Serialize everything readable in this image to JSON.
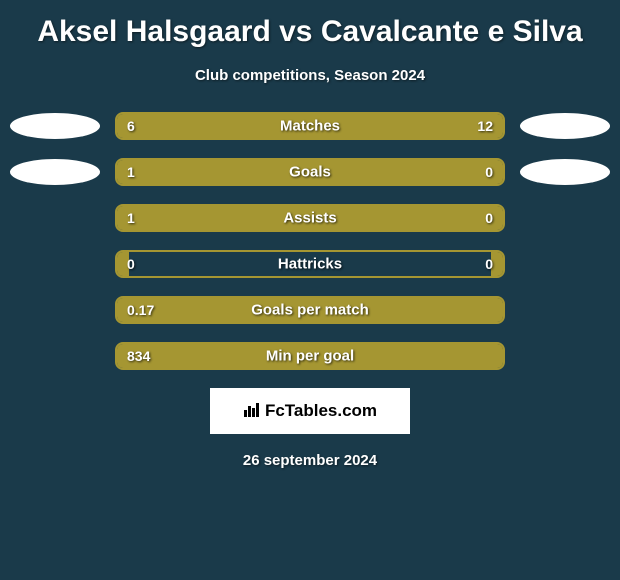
{
  "title": "Aksel Halsgaard vs Cavalcante e Silva",
  "subtitle": "Club competitions, Season 2024",
  "background_color": "#1a3a4a",
  "bar_fill_color": "#a59632",
  "bar_border_color": "#a59632",
  "ellipse_color": "#ffffff",
  "text_color": "#ffffff",
  "title_fontsize": 30,
  "subtitle_fontsize": 15,
  "label_fontsize": 15,
  "value_fontsize": 14,
  "stats": [
    {
      "label": "Matches",
      "left_value": "6",
      "right_value": "12",
      "left_width_pct": 33,
      "right_width_pct": 67,
      "show_ellipses": true
    },
    {
      "label": "Goals",
      "left_value": "1",
      "right_value": "0",
      "left_width_pct": 80,
      "right_width_pct": 20,
      "show_ellipses": true
    },
    {
      "label": "Assists",
      "left_value": "1",
      "right_value": "0",
      "left_width_pct": 80,
      "right_width_pct": 20,
      "show_ellipses": false
    },
    {
      "label": "Hattricks",
      "left_value": "0",
      "right_value": "0",
      "left_width_pct": 3,
      "right_width_pct": 3,
      "show_ellipses": false
    },
    {
      "label": "Goals per match",
      "left_value": "0.17",
      "right_value": "",
      "left_width_pct": 100,
      "right_width_pct": 0,
      "show_ellipses": false
    },
    {
      "label": "Min per goal",
      "left_value": "834",
      "right_value": "",
      "left_width_pct": 100,
      "right_width_pct": 0,
      "show_ellipses": false
    }
  ],
  "footer": {
    "logo_text": "FcTables.com",
    "date": "26 september 2024"
  }
}
